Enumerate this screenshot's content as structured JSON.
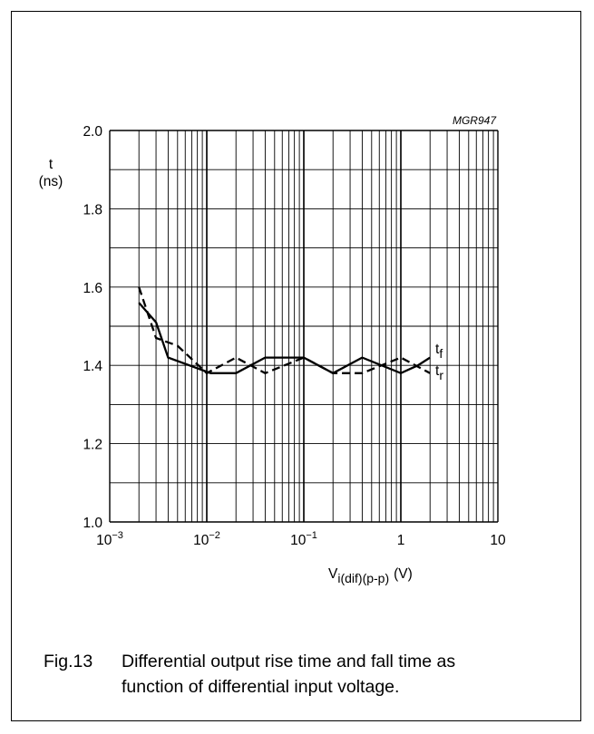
{
  "chart_data": {
    "type": "line",
    "code": "MGR947",
    "ylabel": "t",
    "yunit": "(ns)",
    "xlabel_main": "V",
    "xlabel_sub": "i(dif)(p-p)",
    "xunit": "(V)",
    "x_scale": "log",
    "xlim": [
      0.001,
      10
    ],
    "ylim": [
      1.0,
      2.0
    ],
    "grid": true,
    "y_ticks": [
      {
        "value": 1.0,
        "label": "1.0"
      },
      {
        "value": 1.2,
        "label": "1.2"
      },
      {
        "value": 1.4,
        "label": "1.4"
      },
      {
        "value": 1.6,
        "label": "1.6"
      },
      {
        "value": 1.8,
        "label": "1.8"
      },
      {
        "value": 2.0,
        "label": "2.0"
      }
    ],
    "x_ticks": [
      {
        "value": 0.001,
        "base": "10",
        "exp": "−3"
      },
      {
        "value": 0.01,
        "base": "10",
        "exp": "−2"
      },
      {
        "value": 0.1,
        "base": "10",
        "exp": "−1"
      },
      {
        "value": 1,
        "base": "1",
        "exp": ""
      },
      {
        "value": 10,
        "base": "10",
        "exp": ""
      }
    ],
    "series": [
      {
        "name": "tf",
        "label_main": "t",
        "label_sub": "f",
        "style": "solid",
        "x": [
          0.002,
          0.003,
          0.004,
          0.011,
          0.02,
          0.04,
          0.1,
          0.2,
          0.4,
          1.0,
          1.5,
          2.0
        ],
        "y": [
          1.56,
          1.51,
          1.42,
          1.38,
          1.38,
          1.42,
          1.42,
          1.38,
          1.42,
          1.38,
          1.4,
          1.42
        ]
      },
      {
        "name": "tr",
        "label_main": "t",
        "label_sub": "r",
        "style": "dashed",
        "x": [
          0.002,
          0.003,
          0.005,
          0.01,
          0.02,
          0.04,
          0.1,
          0.2,
          0.4,
          1.0,
          2.0
        ],
        "y": [
          1.6,
          1.47,
          1.45,
          1.38,
          1.42,
          1.38,
          1.42,
          1.38,
          1.38,
          1.42,
          1.38
        ]
      }
    ]
  },
  "caption": {
    "fig_no": "Fig.13",
    "line1": "Differential output rise time and fall time as",
    "line2": "function of differential input voltage."
  }
}
